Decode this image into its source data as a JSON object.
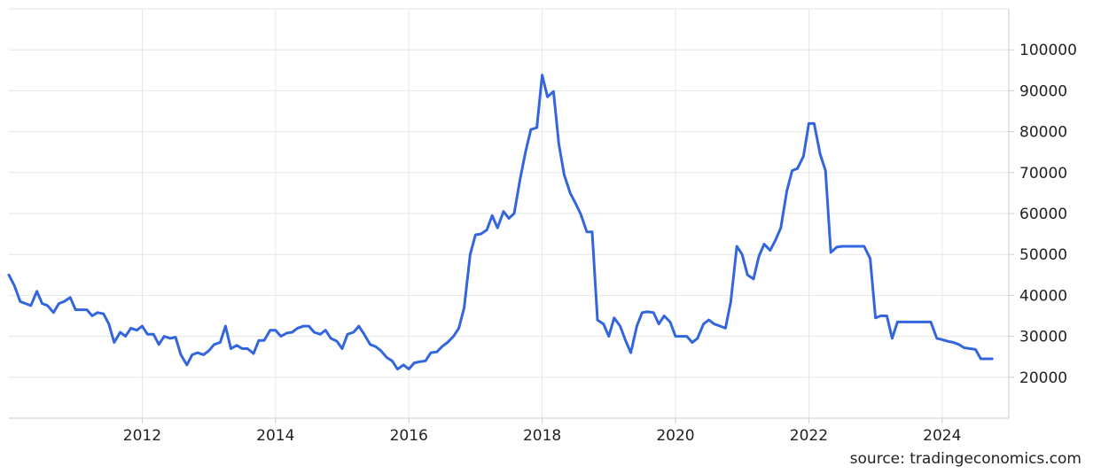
{
  "chart_data": {
    "type": "line",
    "title": "",
    "xlabel": "",
    "ylabel": "",
    "grid": true,
    "xlim": [
      2010.0,
      2025.0
    ],
    "ylim": [
      10000,
      110000
    ],
    "x_ticks": [
      2012,
      2014,
      2016,
      2018,
      2020,
      2022,
      2024
    ],
    "y_ticks": [
      20000,
      30000,
      40000,
      50000,
      60000,
      70000,
      80000,
      90000,
      100000
    ],
    "colors": {
      "line": "#3366dd",
      "grid": "#e6e6e6",
      "axis": "#cccccc",
      "text": "#222222"
    },
    "series": [
      {
        "x": [
          2010.0,
          2010.08,
          2010.17,
          2010.25,
          2010.33,
          2010.42,
          2010.5,
          2010.58,
          2010.67,
          2010.75,
          2010.83,
          2010.92,
          2011.0,
          2011.08,
          2011.17,
          2011.25,
          2011.33,
          2011.42,
          2011.5,
          2011.58,
          2011.67,
          2011.75,
          2011.83,
          2011.92,
          2012.0,
          2012.08,
          2012.17,
          2012.25,
          2012.33,
          2012.42,
          2012.5,
          2012.58,
          2012.67,
          2012.75,
          2012.83,
          2012.92,
          2013.0,
          2013.08,
          2013.17,
          2013.25,
          2013.33,
          2013.42,
          2013.5,
          2013.58,
          2013.67,
          2013.75,
          2013.83,
          2013.92,
          2014.0,
          2014.08,
          2014.17,
          2014.25,
          2014.33,
          2014.42,
          2014.5,
          2014.58,
          2014.67,
          2014.75,
          2014.83,
          2014.92,
          2015.0,
          2015.08,
          2015.17,
          2015.25,
          2015.33,
          2015.42,
          2015.5,
          2015.58,
          2015.67,
          2015.75,
          2015.83,
          2015.92,
          2016.0,
          2016.08,
          2016.17,
          2016.25,
          2016.33,
          2016.42,
          2016.5,
          2016.58,
          2016.67,
          2016.75,
          2016.83,
          2016.92,
          2017.0,
          2017.08,
          2017.17,
          2017.25,
          2017.33,
          2017.42,
          2017.5,
          2017.58,
          2017.67,
          2017.75,
          2017.83,
          2017.92,
          2018.0,
          2018.08,
          2018.17,
          2018.25,
          2018.33,
          2018.42,
          2018.5,
          2018.58,
          2018.67,
          2018.75,
          2018.83,
          2018.92,
          2019.0,
          2019.08,
          2019.17,
          2019.25,
          2019.33,
          2019.42,
          2019.5,
          2019.58,
          2019.67,
          2019.75,
          2019.83,
          2019.92,
          2020.0,
          2020.08,
          2020.17,
          2020.25,
          2020.33,
          2020.42,
          2020.5,
          2020.58,
          2020.67,
          2020.75,
          2020.83,
          2020.92,
          2021.0,
          2021.08,
          2021.17,
          2021.25,
          2021.33,
          2021.42,
          2021.5,
          2021.58,
          2021.67,
          2021.75,
          2021.83,
          2021.92,
          2022.0,
          2022.08,
          2022.17,
          2022.25,
          2022.33,
          2022.42,
          2022.5,
          2022.58,
          2022.67,
          2022.75,
          2022.83,
          2022.92,
          2023.0,
          2023.08,
          2023.17,
          2023.25,
          2023.33,
          2023.42,
          2023.5,
          2023.58,
          2023.67,
          2023.75,
          2023.83,
          2023.92,
          2024.0,
          2024.08,
          2024.17,
          2024.25,
          2024.33,
          2024.42,
          2024.5,
          2024.58,
          2024.67,
          2024.75
        ],
        "values": [
          45000,
          42500,
          38500,
          38000,
          37500,
          41000,
          38000,
          37500,
          35800,
          38000,
          38500,
          39500,
          36500,
          36500,
          36500,
          35000,
          35800,
          35500,
          33000,
          28500,
          31000,
          30000,
          32000,
          31500,
          32500,
          30500,
          30500,
          28000,
          30000,
          29500,
          29800,
          25500,
          23000,
          25500,
          26000,
          25500,
          26500,
          28000,
          28500,
          32500,
          27000,
          27800,
          27000,
          27000,
          25800,
          29000,
          29000,
          31500,
          31500,
          30000,
          30800,
          31000,
          32000,
          32500,
          32500,
          31000,
          30500,
          31500,
          29500,
          28800,
          27000,
          30500,
          31000,
          32500,
          30500,
          28000,
          27500,
          26500,
          24800,
          24000,
          22000,
          23000,
          22000,
          23500,
          23800,
          24000,
          26000,
          26200,
          27500,
          28500,
          30000,
          32000,
          37000,
          50000,
          54800,
          55000,
          56000,
          59500,
          56500,
          60500,
          58800,
          60000,
          68500,
          75000,
          80500,
          81000,
          93800,
          88500,
          89800,
          77000,
          69500,
          65000,
          62500,
          59800,
          55500,
          55500,
          34000,
          33000,
          30000,
          34500,
          32500,
          29000,
          26000,
          32500,
          35800,
          36000,
          35800,
          33000,
          35000,
          33500,
          30000,
          30000,
          30000,
          28500,
          29500,
          33000,
          34000,
          33000,
          32500,
          32000,
          38500,
          52000,
          50000,
          45000,
          44000,
          49500,
          52500,
          51000,
          53500,
          56500,
          65500,
          70500,
          71000,
          74000,
          82000,
          82000,
          74500,
          70500,
          50500,
          51800,
          52000,
          52000,
          52000,
          52000,
          52000,
          49000,
          34500,
          35000,
          35000,
          29500,
          33500,
          33500,
          33500,
          33500,
          33500,
          33500,
          33500,
          29500,
          29200,
          28800,
          28500,
          28000,
          27200,
          27000,
          26800,
          24500,
          24500,
          24500
        ]
      }
    ]
  },
  "source": "source: tradingeconomics.com"
}
